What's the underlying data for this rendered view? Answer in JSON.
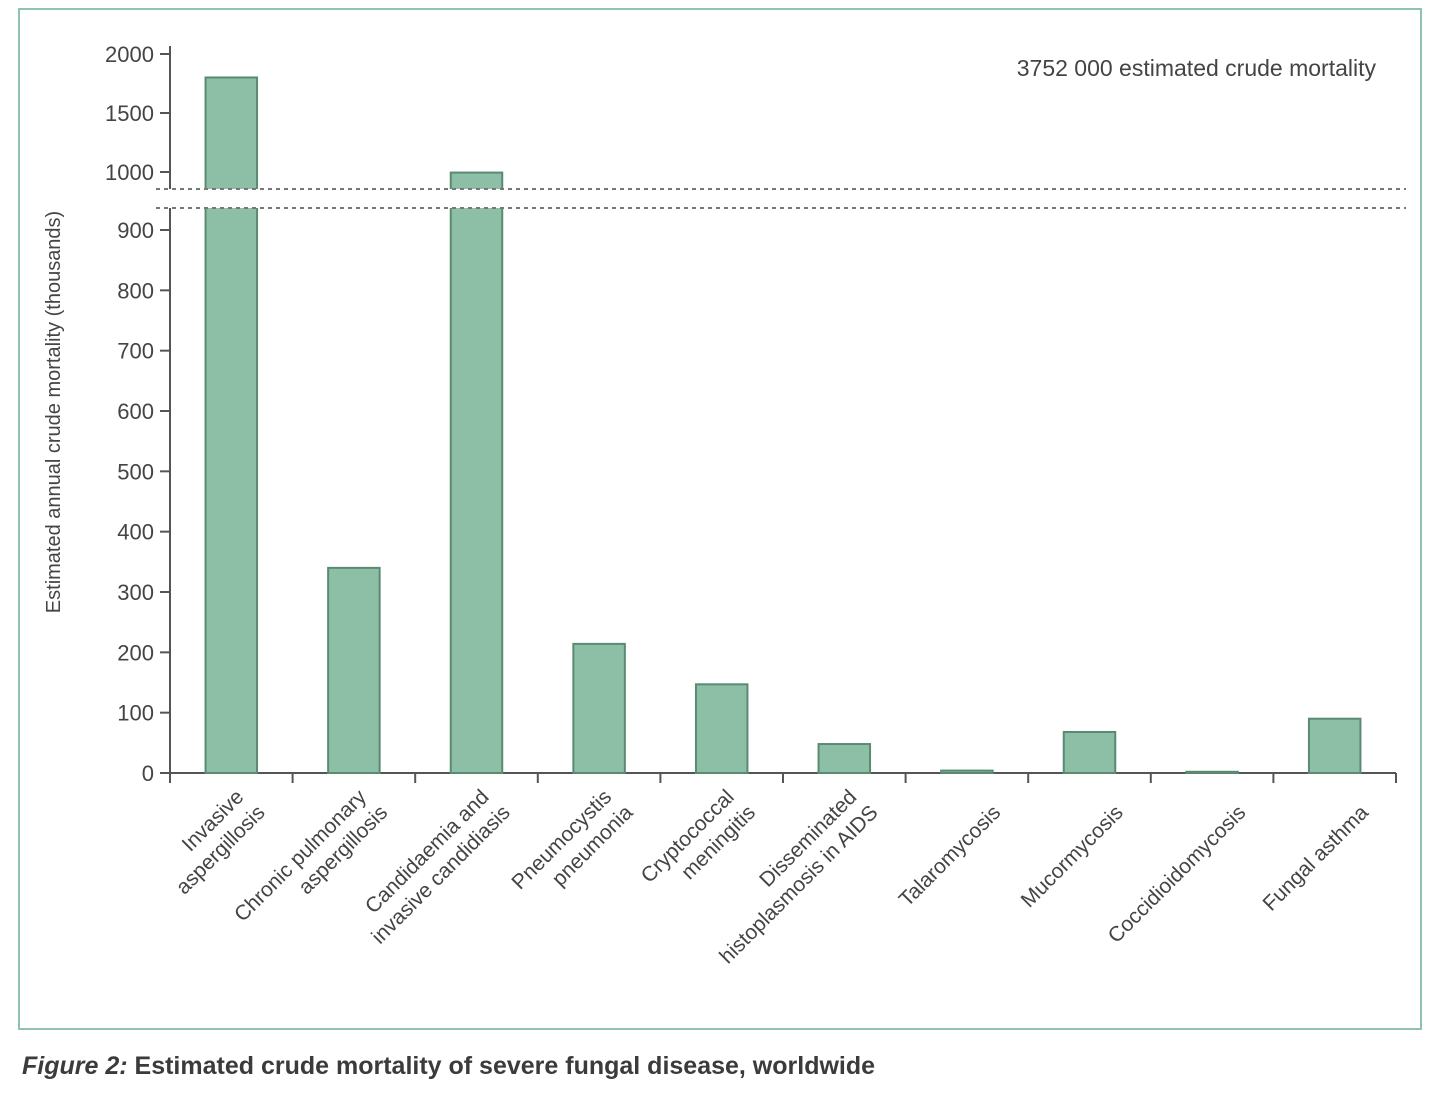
{
  "caption": {
    "label": "Figure 2:",
    "text": "Estimated crude mortality of severe fungal disease, worldwide"
  },
  "colors": {
    "bar_fill": "#8dbfa6",
    "bar_stroke": "#5a8a72",
    "axis": "#555555",
    "frame": "#8fc2b0"
  },
  "chart_data": {
    "type": "bar",
    "ylabel": "Estimated annual crude mortality (thousands)",
    "annotation": "3752 000 estimated crude mortality",
    "axis_break": {
      "lower_max": 950,
      "upper_min": 950,
      "description": "broken y axis: 0–900 then 1000–2000"
    },
    "yticks_lower": [
      "0",
      "100",
      "200",
      "300",
      "400",
      "500",
      "600",
      "700",
      "800",
      "900"
    ],
    "yticks_upper": [
      "1000",
      "1500",
      "2000"
    ],
    "categories": [
      [
        "Invasive",
        "aspergillosis"
      ],
      [
        "Chronic pulmonary",
        "aspergillosis"
      ],
      [
        "Candidaemia and",
        "invasive candidiasis"
      ],
      [
        "Pneumocystis",
        "pneumonia"
      ],
      [
        "Cryptococcal",
        "meningitis"
      ],
      [
        "Disseminated",
        "histoplasmosis in AIDS"
      ],
      [
        "Talaromycosis"
      ],
      [
        "Mucormycosis"
      ],
      [
        "Coccidioidomycosis"
      ],
      [
        "Fungal asthma"
      ]
    ],
    "values": [
      1801,
      340,
      995,
      214,
      147,
      48,
      4,
      68,
      2,
      90
    ],
    "grid": false,
    "legend": "none"
  }
}
